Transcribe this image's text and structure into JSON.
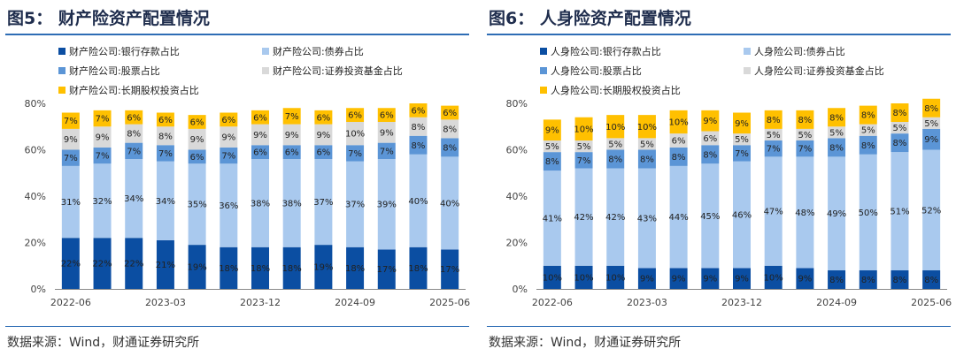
{
  "charts": [
    {
      "title": "图5： 财产险资产配置情况",
      "source": "数据来源：Wind，财通证券研究所",
      "chart_data": {
        "type": "stacked-bar",
        "categories": [
          "2022-06",
          "2022-09",
          "2022-12",
          "2023-03",
          "2023-06",
          "2023-09",
          "2023-12",
          "2024-03",
          "2024-06",
          "2024-09",
          "2024-12",
          "2025-03",
          "2025-06"
        ],
        "x_tick_labels": [
          "2022-06",
          "2023-03",
          "2023-12",
          "2024-09",
          "2025-06"
        ],
        "y_tick_labels": [
          "0%",
          "20%",
          "40%",
          "60%",
          "80%"
        ],
        "ylim": [
          0,
          80
        ],
        "series": [
          {
            "name": "财产险公司:银行存款占比",
            "color": "#0b4ea2",
            "values": [
              22,
              22,
              22,
              21,
              19,
              18,
              18,
              18,
              19,
              18,
              17,
              18,
              17
            ],
            "labels": [
              "22%",
              "22%",
              "22%",
              "21%",
              "19%",
              "18%",
              "18%",
              "18%",
              "19%",
              "18%",
              "17%",
              "18%",
              "17%"
            ]
          },
          {
            "name": "财产险公司:债券占比",
            "color": "#a9c9ee",
            "values": [
              31,
              32,
              34,
              34,
              35,
              36,
              38,
              38,
              37,
              37,
              39,
              40,
              40
            ],
            "labels": [
              "31%",
              "32%",
              "34%",
              "34%",
              "35%",
              "36%",
              "38%",
              "38%",
              "37%",
              "37%",
              "39%",
              "40%",
              "40%"
            ]
          },
          {
            "name": "财产险公司:股票占比",
            "color": "#5b95d6",
            "values": [
              7,
              7,
              7,
              7,
              6,
              7,
              6,
              6,
              6,
              7,
              7,
              8,
              8
            ],
            "labels": [
              "7%",
              "7%",
              "7%",
              "7%",
              "6%",
              "7%",
              "6%",
              "6%",
              "6%",
              "7%",
              "7%",
              "8%",
              "8%"
            ]
          },
          {
            "name": "财产险公司:证券投资基金占比",
            "color": "#d9d9d9",
            "values": [
              9,
              9,
              8,
              8,
              9,
              9,
              9,
              9,
              9,
              10,
              9,
              8,
              8
            ],
            "labels": [
              "9%",
              "9%",
              "8%",
              "8%",
              "9%",
              "9%",
              "9%",
              "9%",
              "9%",
              "10%",
              "9%",
              "8%",
              "8%"
            ]
          },
          {
            "name": "财产险公司:长期股权投资占比",
            "color": "#ffc000",
            "values": [
              7,
              7,
              6,
              6,
              6,
              6,
              6,
              7,
              6,
              6,
              6,
              6,
              6
            ],
            "labels": [
              "7%",
              "7%",
              "6%",
              "6%",
              "6%",
              "6%",
              "6%",
              "7%",
              "6%",
              "6%",
              "6%",
              "6%",
              "6%"
            ]
          }
        ]
      }
    },
    {
      "title": "图6： 人身险资产配置情况",
      "source": "数据来源：Wind，财通证券研究所",
      "chart_data": {
        "type": "stacked-bar",
        "categories": [
          "2022-06",
          "2022-09",
          "2022-12",
          "2023-03",
          "2023-06",
          "2023-09",
          "2023-12",
          "2024-03",
          "2024-06",
          "2024-09",
          "2024-12",
          "2025-03",
          "2025-06"
        ],
        "x_tick_labels": [
          "2022-06",
          "2023-03",
          "2023-12",
          "2024-09",
          "2025-06"
        ],
        "y_tick_labels": [
          "0%",
          "20%",
          "40%",
          "60%",
          "80%"
        ],
        "ylim": [
          0,
          80
        ],
        "series": [
          {
            "name": "人身险公司:银行存款占比",
            "color": "#0b4ea2",
            "values": [
              10,
              10,
              10,
              9,
              9,
              9,
              9,
              10,
              9,
              8,
              8,
              8,
              8
            ],
            "labels": [
              "10%",
              "10%",
              "10%",
              "9%",
              "9%",
              "9%",
              "9%",
              "10%",
              "9%",
              "8%",
              "8%",
              "8%",
              "8%"
            ]
          },
          {
            "name": "人身险公司:债券占比",
            "color": "#a9c9ee",
            "values": [
              41,
              42,
              42,
              43,
              44,
              45,
              46,
              47,
              48,
              49,
              50,
              51,
              52
            ],
            "labels": [
              "41%",
              "42%",
              "42%",
              "43%",
              "44%",
              "45%",
              "46%",
              "47%",
              "48%",
              "49%",
              "50%",
              "51%",
              "52%"
            ]
          },
          {
            "name": "人身险公司:股票占比",
            "color": "#5b95d6",
            "values": [
              8,
              7,
              8,
              8,
              8,
              8,
              7,
              7,
              7,
              8,
              8,
              8,
              9
            ],
            "labels": [
              "8%",
              "7%",
              "8%",
              "8%",
              "8%",
              "8%",
              "7%",
              "7%",
              "7%",
              "8%",
              "8%",
              "8%",
              "9%"
            ]
          },
          {
            "name": "人身险公司:证券投资基金占比",
            "color": "#d9d9d9",
            "values": [
              5,
              5,
              5,
              5,
              6,
              6,
              5,
              5,
              5,
              5,
              5,
              5,
              5
            ],
            "labels": [
              "5%",
              "5%",
              "5%",
              "5%",
              "6%",
              "6%",
              "5%",
              "5%",
              "5%",
              "5%",
              "5%",
              "5%",
              "5%"
            ]
          },
          {
            "name": "人身险公司:长期股权投资占比",
            "color": "#ffc000",
            "values": [
              9,
              10,
              10,
              10,
              10,
              9,
              9,
              8,
              8,
              8,
              8,
              8,
              8
            ],
            "labels": [
              "9%",
              "10%",
              "10%",
              "10%",
              "10%",
              "9%",
              "9%",
              "8%",
              "8%",
              "8%",
              "8%",
              "8%",
              "8%"
            ]
          }
        ]
      }
    }
  ]
}
